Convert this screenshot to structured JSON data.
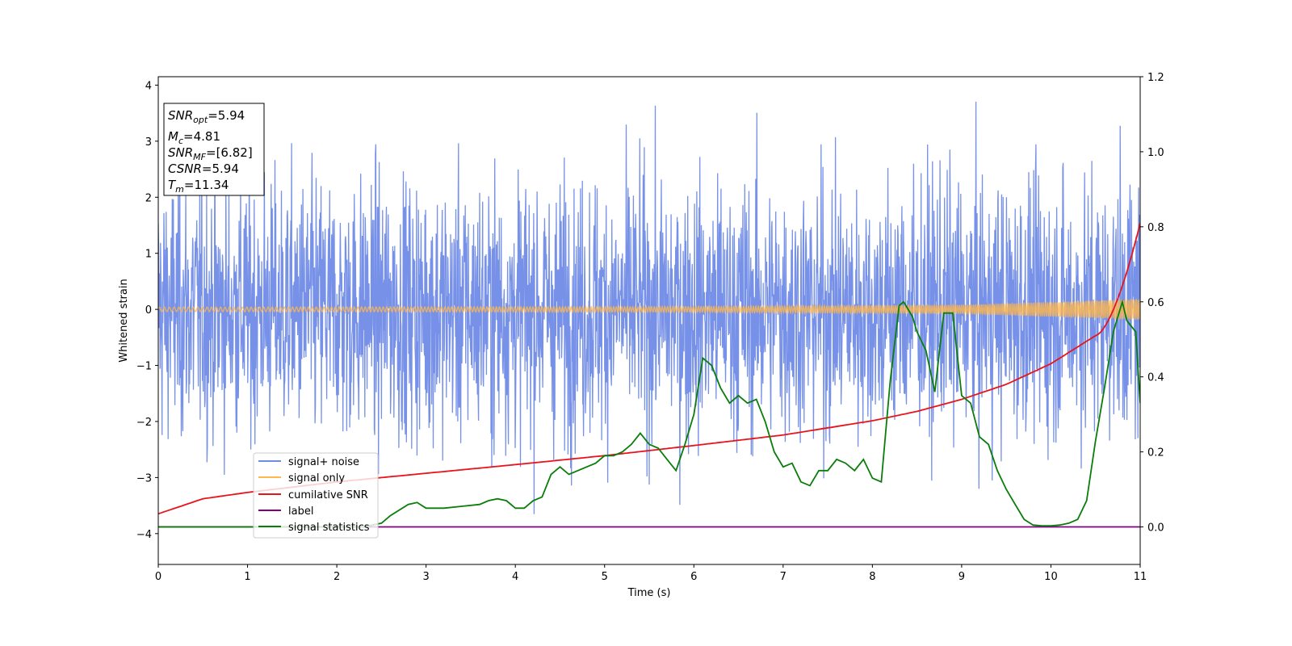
{
  "chart_data": {
    "type": "line",
    "xlabel": "Time (s)",
    "ylabel": "Whitened strain",
    "xlim": [
      0,
      11
    ],
    "ylim_left": [
      -4.55,
      4.15
    ],
    "ylim_right": [
      -0.1,
      1.2
    ],
    "x_ticks": [
      "0",
      "1",
      "2",
      "3",
      "4",
      "5",
      "6",
      "7",
      "8",
      "9",
      "10",
      "11"
    ],
    "y_ticks_left": [
      "4",
      "3",
      "2",
      "1",
      "0",
      "−1",
      "−2",
      "−3",
      "−4"
    ],
    "y_ticks_right": [
      "1.2",
      "1.0",
      "0.8",
      "0.6",
      "0.4",
      "0.2",
      "0.0"
    ],
    "grid": false,
    "legend_position": "lower-left",
    "info_box": {
      "snr_opt": {
        "main": "SNR",
        "sub": "opt",
        "value": "=5.94"
      },
      "mc": {
        "main": "M",
        "sub": "c",
        "value": "=4.81"
      },
      "snr_mf": {
        "main": "SNR",
        "sub": "MF",
        "value": "=[6.82]"
      },
      "csnr": {
        "main": "CSNR",
        "value": "=5.94"
      },
      "tm": {
        "main": "T",
        "sub": "m",
        "value": "=11.34"
      }
    },
    "series": [
      {
        "name": "signal+ noise",
        "axis": "left",
        "color": "#6f8be6",
        "kind": "noise",
        "amplitude_typical": 1.6,
        "amplitude_max": 3.8,
        "amplitude_min": -4.1
      },
      {
        "name": "signal only",
        "axis": "left",
        "color": "#ffb74d",
        "kind": "chirp",
        "envelope": {
          "x": [
            0,
            6,
            9,
            10,
            11
          ],
          "y": [
            0.04,
            0.05,
            0.08,
            0.13,
            0.19
          ]
        }
      },
      {
        "name": "cumilative SNR",
        "axis": "right",
        "color": "#e8141c",
        "x": [
          0,
          0.5,
          1,
          2,
          3,
          4,
          5,
          6,
          7,
          8,
          8.5,
          9,
          9.5,
          10,
          10.5,
          11
        ],
        "y": [
          0.035,
          0.075,
          0.092,
          0.12,
          0.143,
          0.166,
          0.19,
          0.217,
          0.245,
          0.283,
          0.308,
          0.34,
          0.38,
          0.435,
          0.51,
          0.81
        ]
      },
      {
        "name": "label",
        "axis": "right",
        "color": "#800080",
        "x": [
          0,
          11
        ],
        "y": [
          0,
          0
        ]
      },
      {
        "name": "signal statistics",
        "axis": "right",
        "color": "#0a7d0a",
        "x": [
          0,
          2.3,
          2.5,
          2.6,
          2.8,
          2.9,
          3.0,
          3.2,
          3.4,
          3.6,
          3.7,
          3.8,
          3.9,
          4.0,
          4.1,
          4.2,
          4.3,
          4.4,
          4.5,
          4.6,
          4.7,
          4.8,
          4.9,
          5.0,
          5.1,
          5.2,
          5.3,
          5.4,
          5.5,
          5.6,
          5.7,
          5.8,
          5.9,
          6.0,
          6.1,
          6.15,
          6.2,
          6.3,
          6.4,
          6.5,
          6.6,
          6.7,
          6.8,
          6.9,
          7.0,
          7.1,
          7.2,
          7.3,
          7.4,
          7.5,
          7.6,
          7.7,
          7.8,
          7.9,
          8.0,
          8.1,
          8.2,
          8.3,
          8.35,
          8.45,
          8.5,
          8.6,
          8.7,
          8.8,
          8.9,
          9.0,
          9.1,
          9.2,
          9.3,
          9.4,
          9.5,
          9.6,
          9.7,
          9.8,
          9.9,
          10.0,
          10.1,
          10.2,
          10.3,
          10.4,
          10.5,
          10.6,
          10.7,
          10.8,
          10.85,
          10.95,
          11.0
        ],
        "y": [
          0.0,
          0.0,
          0.01,
          0.03,
          0.06,
          0.065,
          0.05,
          0.05,
          0.055,
          0.06,
          0.07,
          0.075,
          0.07,
          0.05,
          0.05,
          0.07,
          0.08,
          0.14,
          0.16,
          0.14,
          0.15,
          0.16,
          0.17,
          0.19,
          0.19,
          0.2,
          0.22,
          0.25,
          0.22,
          0.21,
          0.18,
          0.15,
          0.22,
          0.3,
          0.45,
          0.44,
          0.43,
          0.37,
          0.33,
          0.35,
          0.33,
          0.34,
          0.28,
          0.2,
          0.16,
          0.17,
          0.12,
          0.11,
          0.15,
          0.15,
          0.18,
          0.17,
          0.15,
          0.18,
          0.13,
          0.12,
          0.39,
          0.59,
          0.6,
          0.56,
          0.52,
          0.47,
          0.36,
          0.57,
          0.57,
          0.35,
          0.33,
          0.24,
          0.22,
          0.15,
          0.1,
          0.06,
          0.02,
          0.005,
          0.003,
          0.003,
          0.005,
          0.01,
          0.02,
          0.07,
          0.23,
          0.37,
          0.52,
          0.6,
          0.55,
          0.52,
          0.33
        ]
      }
    ]
  }
}
